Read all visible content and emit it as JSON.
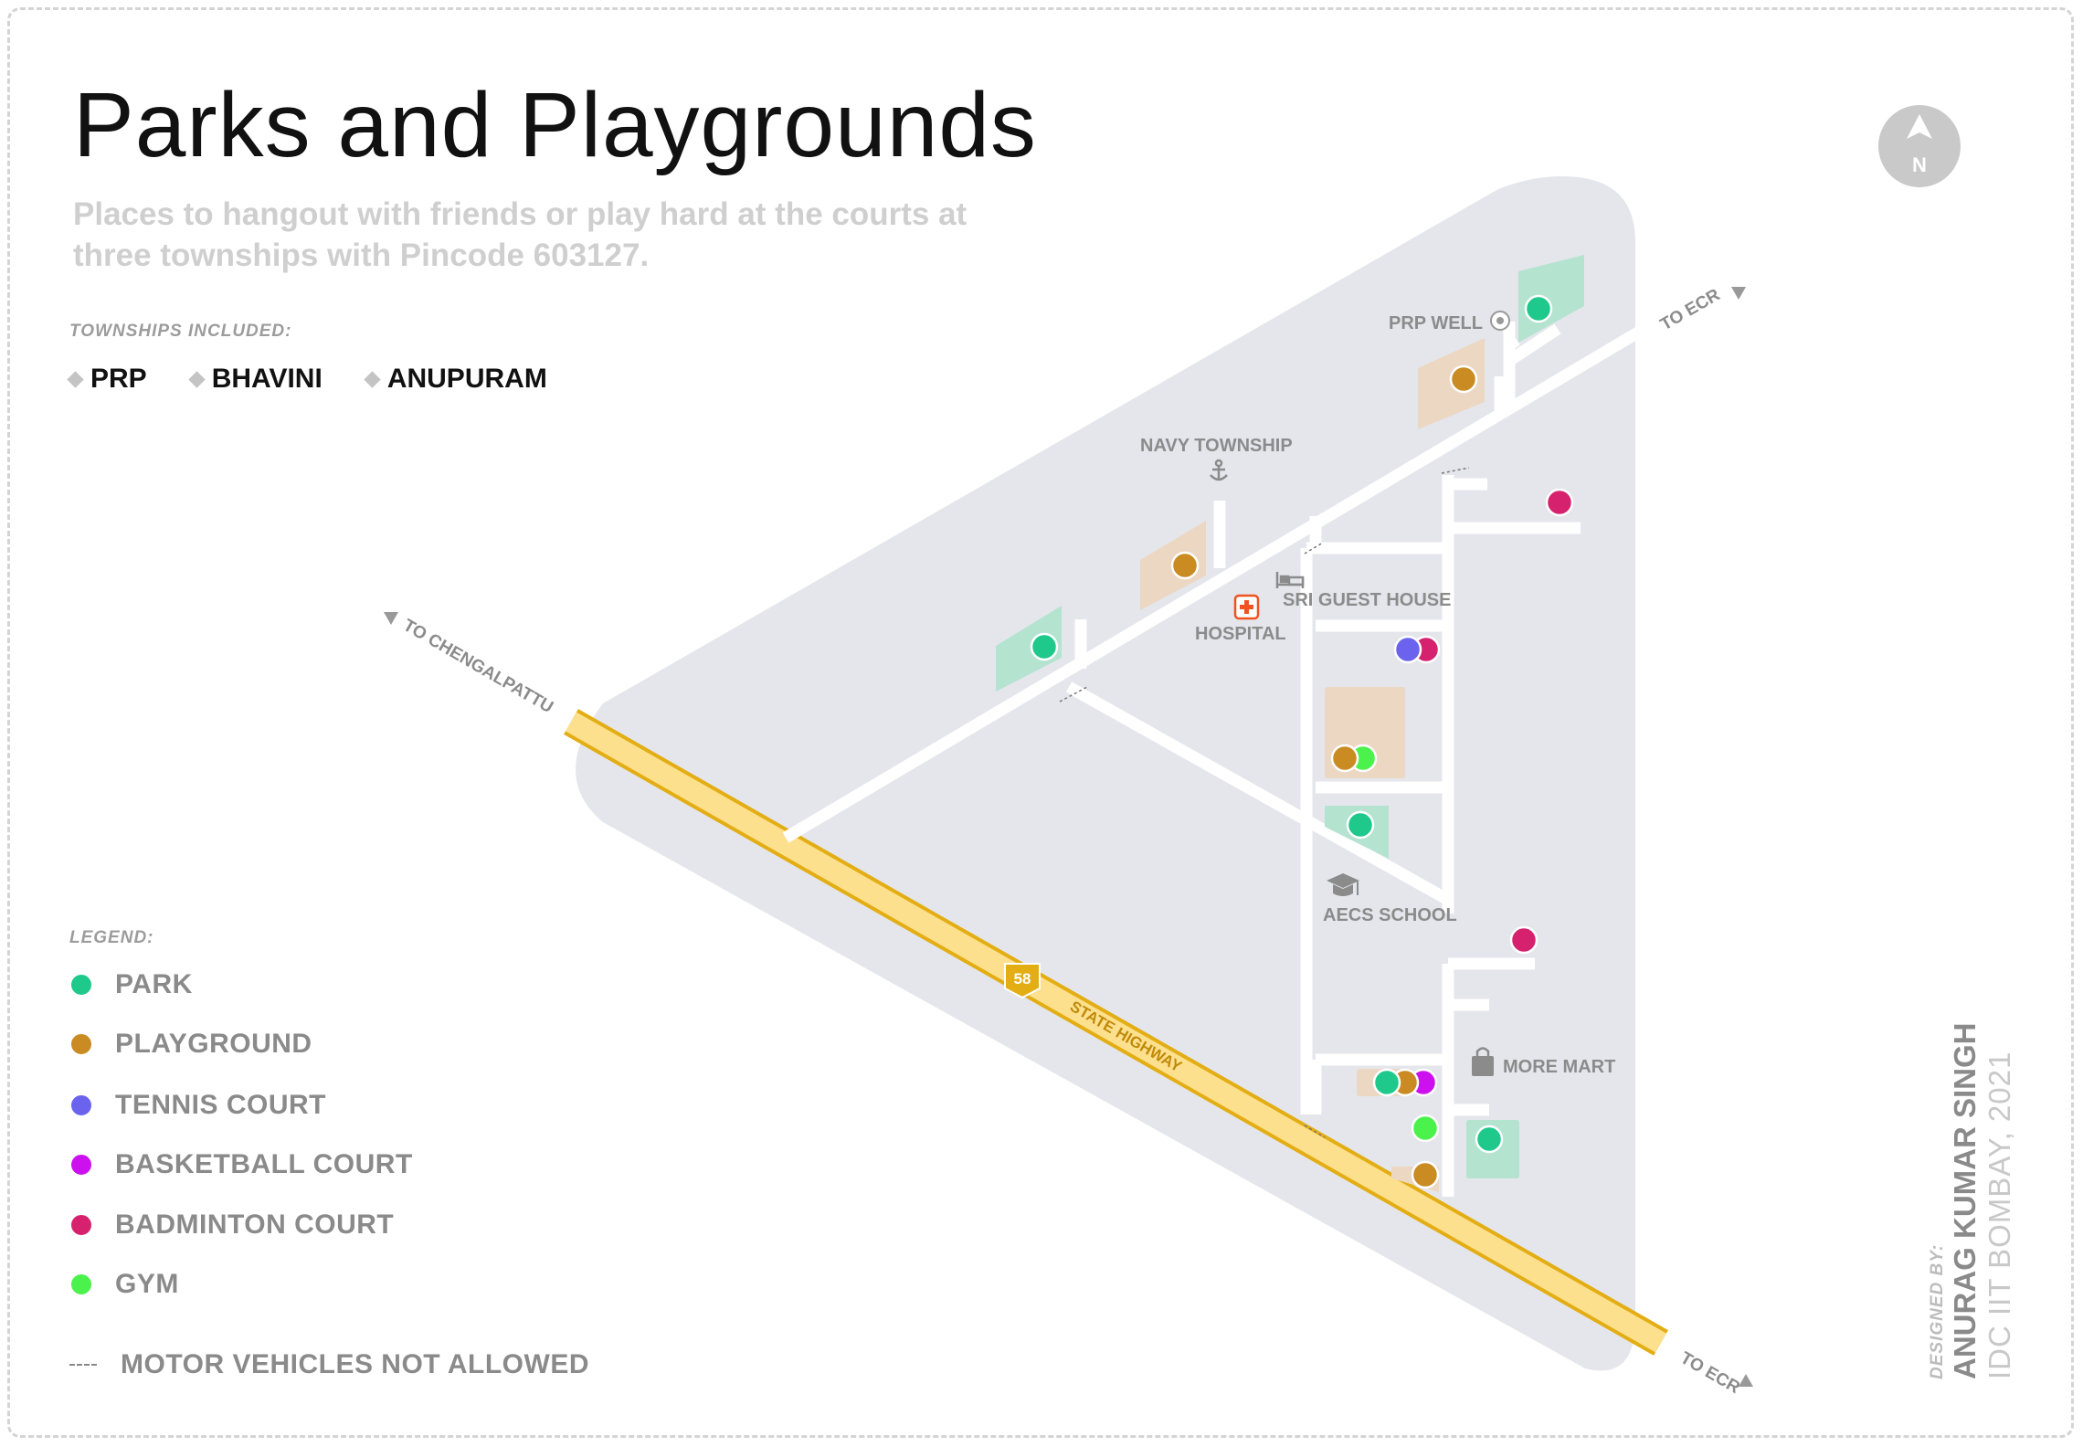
{
  "title": "Parks and Playgrounds",
  "subtitle": "Places to hangout with friends or play hard at the courts at three townships with Pincode 603127.",
  "townships": {
    "heading": "TOWNSHIPS INCLUDED:",
    "items": [
      "PRP",
      "BHAVINI",
      "ANUPURAM"
    ]
  },
  "legend": {
    "heading": "LEGEND:",
    "items": [
      {
        "label": "PARK",
        "color": "#1ec98b"
      },
      {
        "label": "PLAYGROUND",
        "color": "#c98b22"
      },
      {
        "label": "TENNIS COURT",
        "color": "#6b63ee"
      },
      {
        "label": "BASKETBALL COURT",
        "color": "#cc11ee"
      },
      {
        "label": "BADMINTON COURT",
        "color": "#d6226e"
      },
      {
        "label": "GYM",
        "color": "#4cf24c"
      }
    ],
    "dashed_label": "MOTOR VEHICLES NOT ALLOWED"
  },
  "compass": {
    "label": "N"
  },
  "map_labels": {
    "prp_well": "PRP WELL",
    "navy_township": "NAVY TOWNSHIP",
    "sri_guest_house": "SRI GUEST HOUSE",
    "hospital": "HOSPITAL",
    "aecs_school": "AECS SCHOOL",
    "more_mart": "MORE MART",
    "to_ecr_top": "TO ECR",
    "to_ecr_bottom": "TO ECR",
    "to_chengalpattu": "TO CHENGALPATTU",
    "state_highway": "STATE HIGHWAY",
    "highway_number": "58"
  },
  "credit": {
    "by": "DESIGNED BY:",
    "name": "ANURAG KUMAR SINGH",
    "org": "IDC IIT BOMBAY, 2021"
  },
  "colors": {
    "region": "#e4e6ec",
    "road": "#ffffff",
    "highway": "#fde08d",
    "highway_edge": "#e3ad14",
    "park_area": "#b4e3cf",
    "playground_area": "#ecd7c2"
  }
}
